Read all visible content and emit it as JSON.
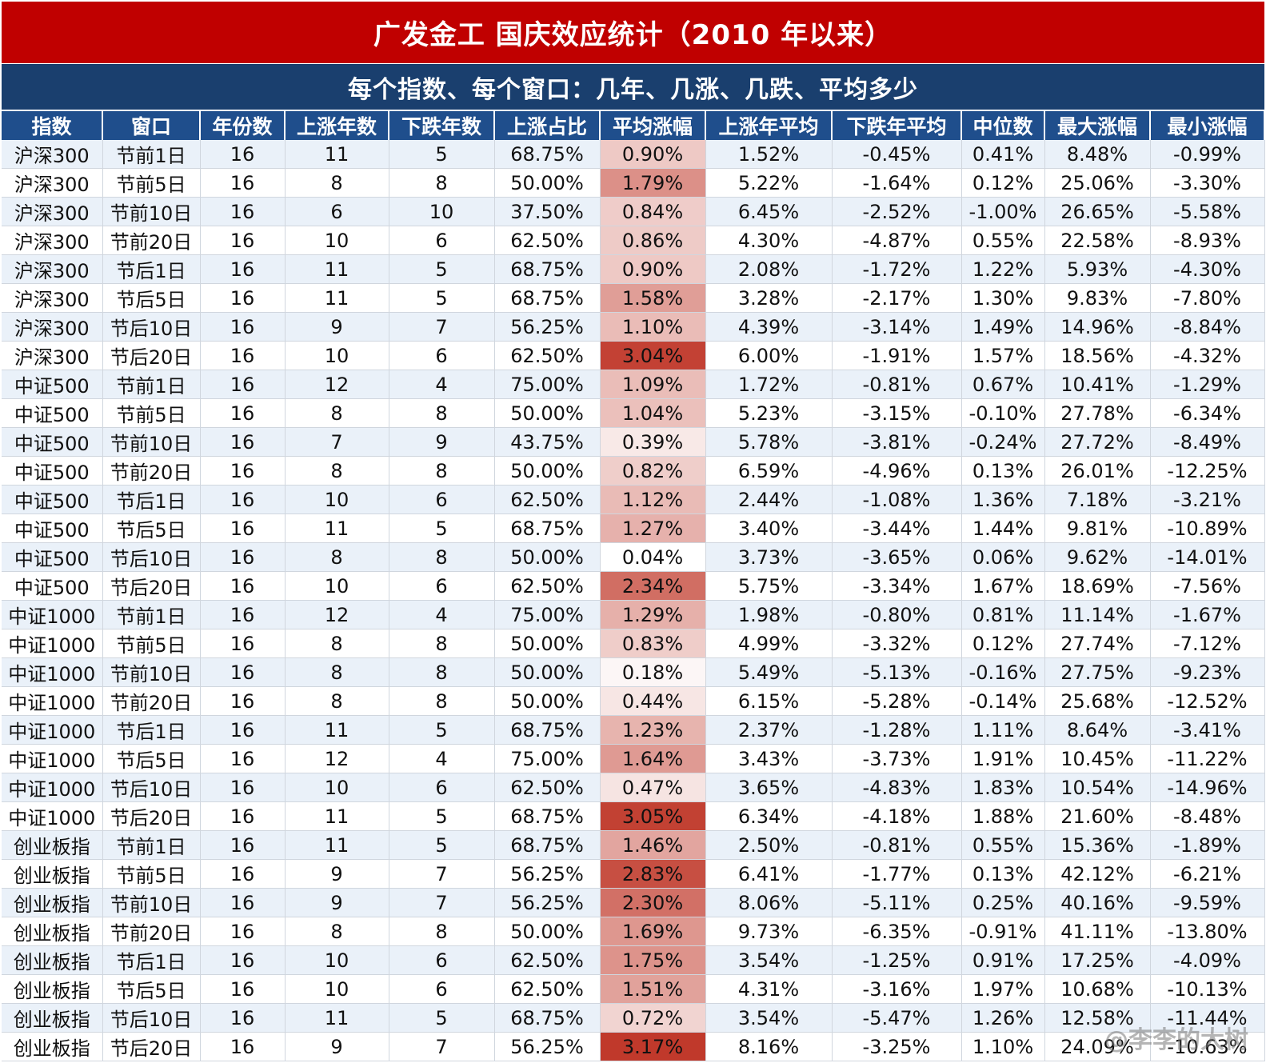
{
  "colors": {
    "title_bg": "#c00000",
    "subtitle_bg": "#1a3f6e",
    "header_bg": "#1f4e8c",
    "row_alt": "#eaf1f9",
    "heat_max": "#c0392b",
    "heat_min": "#ffffff"
  },
  "title": "广发金工  国庆效应统计（2010 年以来）",
  "subtitle": "每个指数、每个窗口：几年、几涨、几跌、平均多少",
  "columns": [
    "指数",
    "窗口",
    "年份数",
    "上涨年数",
    "下跌年数",
    "上涨占比",
    "平均涨幅",
    "上涨年平均",
    "下跌年平均",
    "中位数",
    "最大涨幅",
    "最小涨幅"
  ],
  "rows": [
    [
      "沪深300",
      "节前1日",
      "16",
      "11",
      "5",
      "68.75%",
      "0.90%",
      "1.52%",
      "-0.45%",
      "0.41%",
      "8.48%",
      "-0.99%"
    ],
    [
      "沪深300",
      "节前5日",
      "16",
      "8",
      "8",
      "50.00%",
      "1.79%",
      "5.22%",
      "-1.64%",
      "0.12%",
      "25.06%",
      "-3.30%"
    ],
    [
      "沪深300",
      "节前10日",
      "16",
      "6",
      "10",
      "37.50%",
      "0.84%",
      "6.45%",
      "-2.52%",
      "-1.00%",
      "26.65%",
      "-5.58%"
    ],
    [
      "沪深300",
      "节前20日",
      "16",
      "10",
      "6",
      "62.50%",
      "0.86%",
      "4.30%",
      "-4.87%",
      "0.55%",
      "22.58%",
      "-8.93%"
    ],
    [
      "沪深300",
      "节后1日",
      "16",
      "11",
      "5",
      "68.75%",
      "0.90%",
      "2.08%",
      "-1.72%",
      "1.22%",
      "5.93%",
      "-4.30%"
    ],
    [
      "沪深300",
      "节后5日",
      "16",
      "11",
      "5",
      "68.75%",
      "1.58%",
      "3.28%",
      "-2.17%",
      "1.30%",
      "9.83%",
      "-7.80%"
    ],
    [
      "沪深300",
      "节后10日",
      "16",
      "9",
      "7",
      "56.25%",
      "1.10%",
      "4.39%",
      "-3.14%",
      "1.49%",
      "14.96%",
      "-8.84%"
    ],
    [
      "沪深300",
      "节后20日",
      "16",
      "10",
      "6",
      "62.50%",
      "3.04%",
      "6.00%",
      "-1.91%",
      "1.57%",
      "18.56%",
      "-4.32%"
    ],
    [
      "中证500",
      "节前1日",
      "16",
      "12",
      "4",
      "75.00%",
      "1.09%",
      "1.72%",
      "-0.81%",
      "0.67%",
      "10.41%",
      "-1.29%"
    ],
    [
      "中证500",
      "节前5日",
      "16",
      "8",
      "8",
      "50.00%",
      "1.04%",
      "5.23%",
      "-3.15%",
      "-0.10%",
      "27.78%",
      "-6.34%"
    ],
    [
      "中证500",
      "节前10日",
      "16",
      "7",
      "9",
      "43.75%",
      "0.39%",
      "5.78%",
      "-3.81%",
      "-0.24%",
      "27.72%",
      "-8.49%"
    ],
    [
      "中证500",
      "节前20日",
      "16",
      "8",
      "8",
      "50.00%",
      "0.82%",
      "6.59%",
      "-4.96%",
      "0.13%",
      "26.01%",
      "-12.25%"
    ],
    [
      "中证500",
      "节后1日",
      "16",
      "10",
      "6",
      "62.50%",
      "1.12%",
      "2.44%",
      "-1.08%",
      "1.36%",
      "7.18%",
      "-3.21%"
    ],
    [
      "中证500",
      "节后5日",
      "16",
      "11",
      "5",
      "68.75%",
      "1.27%",
      "3.40%",
      "-3.44%",
      "1.44%",
      "9.81%",
      "-10.89%"
    ],
    [
      "中证500",
      "节后10日",
      "16",
      "8",
      "8",
      "50.00%",
      "0.04%",
      "3.73%",
      "-3.65%",
      "0.06%",
      "9.62%",
      "-14.01%"
    ],
    [
      "中证500",
      "节后20日",
      "16",
      "10",
      "6",
      "62.50%",
      "2.34%",
      "5.75%",
      "-3.34%",
      "1.67%",
      "18.69%",
      "-7.56%"
    ],
    [
      "中证1000",
      "节前1日",
      "16",
      "12",
      "4",
      "75.00%",
      "1.29%",
      "1.98%",
      "-0.80%",
      "0.81%",
      "11.14%",
      "-1.67%"
    ],
    [
      "中证1000",
      "节前5日",
      "16",
      "8",
      "8",
      "50.00%",
      "0.83%",
      "4.99%",
      "-3.32%",
      "0.12%",
      "27.74%",
      "-7.12%"
    ],
    [
      "中证1000",
      "节前10日",
      "16",
      "8",
      "8",
      "50.00%",
      "0.18%",
      "5.49%",
      "-5.13%",
      "-0.16%",
      "27.75%",
      "-9.23%"
    ],
    [
      "中证1000",
      "节前20日",
      "16",
      "8",
      "8",
      "50.00%",
      "0.44%",
      "6.15%",
      "-5.28%",
      "-0.14%",
      "25.68%",
      "-12.52%"
    ],
    [
      "中证1000",
      "节后1日",
      "16",
      "11",
      "5",
      "68.75%",
      "1.23%",
      "2.37%",
      "-1.28%",
      "1.11%",
      "8.64%",
      "-3.41%"
    ],
    [
      "中证1000",
      "节后5日",
      "16",
      "12",
      "4",
      "75.00%",
      "1.64%",
      "3.43%",
      "-3.73%",
      "1.91%",
      "10.45%",
      "-11.22%"
    ],
    [
      "中证1000",
      "节后10日",
      "16",
      "10",
      "6",
      "62.50%",
      "0.47%",
      "3.65%",
      "-4.83%",
      "1.83%",
      "10.54%",
      "-14.96%"
    ],
    [
      "中证1000",
      "节后20日",
      "16",
      "11",
      "5",
      "68.75%",
      "3.05%",
      "6.34%",
      "-4.18%",
      "1.88%",
      "21.60%",
      "-8.48%"
    ],
    [
      "创业板指",
      "节前1日",
      "16",
      "11",
      "5",
      "68.75%",
      "1.46%",
      "2.50%",
      "-0.81%",
      "0.55%",
      "15.36%",
      "-1.89%"
    ],
    [
      "创业板指",
      "节前5日",
      "16",
      "9",
      "7",
      "56.25%",
      "2.83%",
      "6.41%",
      "-1.77%",
      "0.13%",
      "42.12%",
      "-6.21%"
    ],
    [
      "创业板指",
      "节前10日",
      "16",
      "9",
      "7",
      "56.25%",
      "2.30%",
      "8.06%",
      "-5.11%",
      "0.25%",
      "40.16%",
      "-9.59%"
    ],
    [
      "创业板指",
      "节前20日",
      "16",
      "8",
      "8",
      "50.00%",
      "1.69%",
      "9.73%",
      "-6.35%",
      "-0.91%",
      "41.11%",
      "-13.80%"
    ],
    [
      "创业板指",
      "节后1日",
      "16",
      "10",
      "6",
      "62.50%",
      "1.75%",
      "3.54%",
      "-1.25%",
      "0.91%",
      "17.25%",
      "-4.09%"
    ],
    [
      "创业板指",
      "节后5日",
      "16",
      "10",
      "6",
      "62.50%",
      "1.51%",
      "4.31%",
      "-3.16%",
      "1.97%",
      "10.68%",
      "-10.13%"
    ],
    [
      "创业板指",
      "节后10日",
      "16",
      "11",
      "5",
      "68.75%",
      "0.72%",
      "3.54%",
      "-5.47%",
      "1.26%",
      "12.58%",
      "-11.44%"
    ],
    [
      "创业板指",
      "节后20日",
      "16",
      "9",
      "7",
      "56.25%",
      "3.17%",
      "8.16%",
      "-3.25%",
      "1.10%",
      "24.09%",
      "-10.63%"
    ]
  ],
  "watermark": "@李李的大树"
}
